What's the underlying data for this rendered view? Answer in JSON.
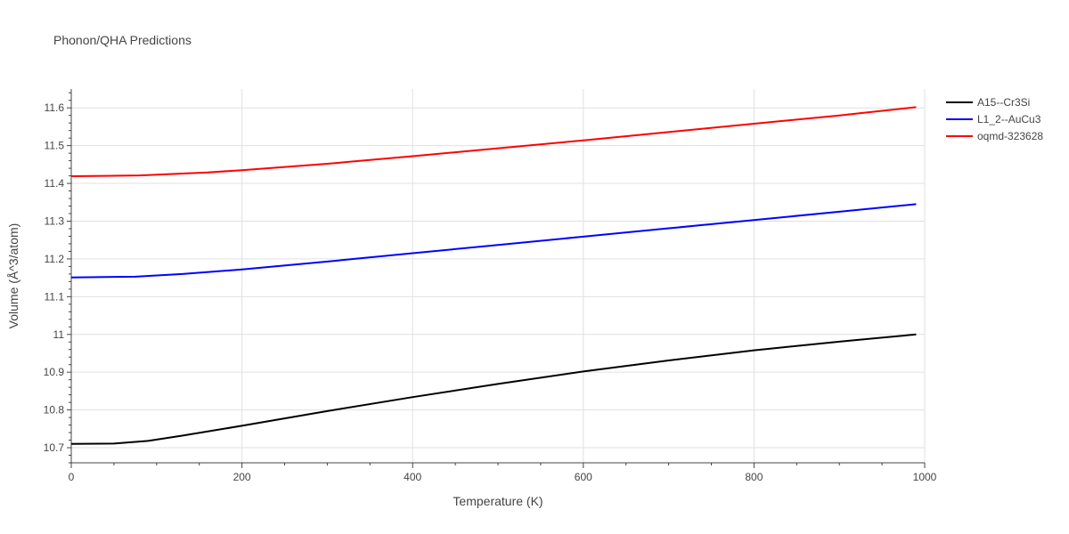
{
  "chart_data": {
    "type": "line",
    "title": "Phonon/QHA Predictions",
    "xlabel": "Temperature (K)",
    "ylabel": "Volume (Å^3/atom)",
    "xlim": [
      0,
      1000
    ],
    "ylim": [
      10.66,
      11.65
    ],
    "x_ticks": [
      0,
      200,
      400,
      600,
      800,
      1000
    ],
    "x_tick_labels": [
      "0",
      "200",
      "400",
      "600",
      "800",
      "1000"
    ],
    "y_ticks": [
      10.7,
      10.8,
      10.9,
      11.0,
      11.1,
      11.2,
      11.3,
      11.4,
      11.5,
      11.6
    ],
    "y_tick_labels": [
      "10.7",
      "10.8",
      "10.9",
      "11",
      "11.1",
      "11.2",
      "11.3",
      "11.4",
      "11.5",
      "11.6"
    ],
    "grid": true,
    "legend_position": "top-right",
    "series": [
      {
        "name": "A15--Cr3Si",
        "color": "#000000",
        "x": [
          0,
          50,
          90,
          130,
          200,
          300,
          400,
          500,
          600,
          700,
          800,
          900,
          990
        ],
        "y": [
          10.71,
          10.711,
          10.718,
          10.732,
          10.758,
          10.797,
          10.834,
          10.869,
          10.902,
          10.931,
          10.958,
          10.981,
          11.0
        ]
      },
      {
        "name": "L1_2--AuCu3",
        "color": "#0000ff",
        "x": [
          0,
          75,
          130,
          200,
          300,
          400,
          500,
          600,
          700,
          800,
          900,
          990
        ],
        "y": [
          11.151,
          11.153,
          11.16,
          11.172,
          11.193,
          11.215,
          11.237,
          11.259,
          11.281,
          11.303,
          11.325,
          11.345
        ]
      },
      {
        "name": "oqmd-323628",
        "color": "#ff0000",
        "x": [
          0,
          80,
          160,
          200,
          300,
          400,
          500,
          600,
          700,
          800,
          900,
          990
        ],
        "y": [
          11.419,
          11.421,
          11.429,
          11.435,
          11.452,
          11.472,
          11.493,
          11.514,
          11.536,
          11.558,
          11.58,
          11.602
        ]
      }
    ]
  }
}
